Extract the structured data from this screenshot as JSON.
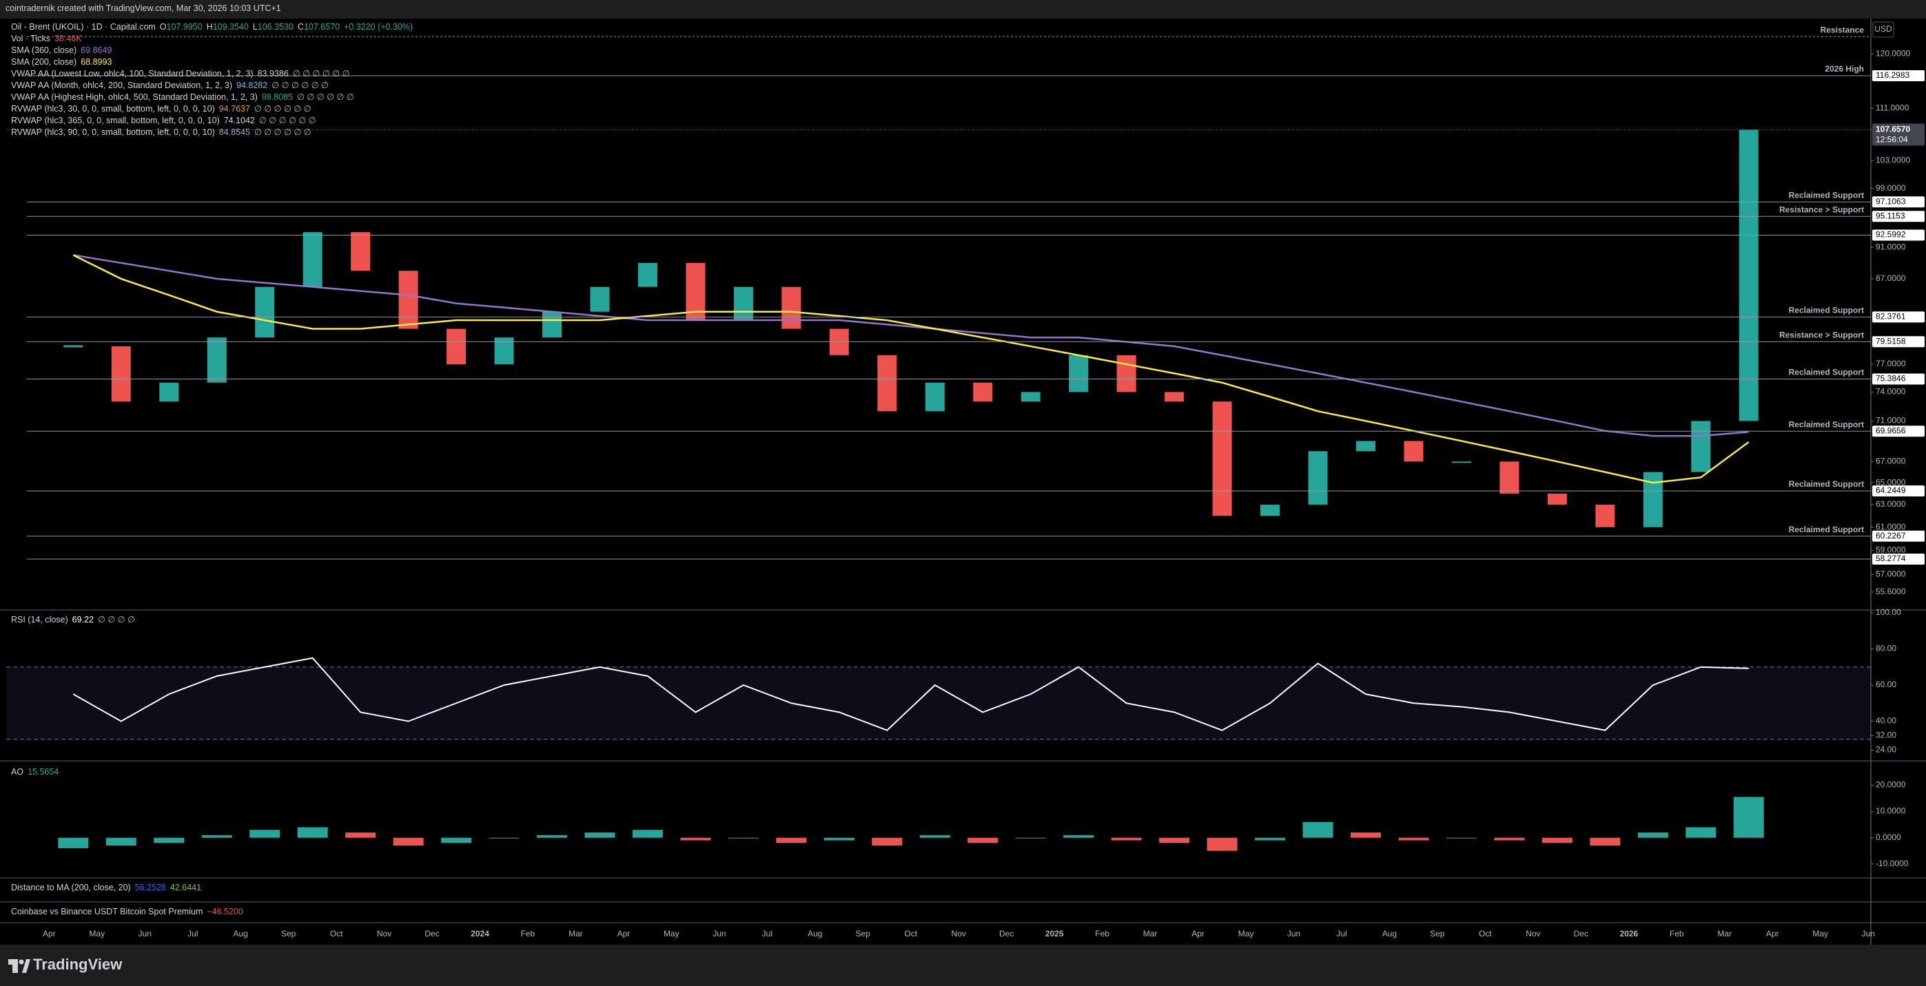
{
  "header": {
    "text": "cointradernik created with TradingView.com, Mar 30, 2026 10:03 UTC+1"
  },
  "currency": "USD",
  "legend": {
    "symbol": "Oil - Brent (UKOIL) · 1D · Capital.com",
    "ohlc": [
      {
        "key": "O",
        "value": "107.9950"
      },
      {
        "key": "H",
        "value": "109.3540"
      },
      {
        "key": "L",
        "value": "106.3530"
      },
      {
        "key": "C",
        "value": "107.6570"
      }
    ],
    "change": "+0.3220 (+0.30%)",
    "indicators": [
      {
        "name": "Vol · Ticks",
        "value": "38.46K",
        "color": "#ef5350"
      },
      {
        "name": "SMA (360, close)",
        "value": "69.8649",
        "color": "#9575cd"
      },
      {
        "name": "SMA (200, close)",
        "value": "68.8993",
        "color": "#ffeb3b"
      },
      {
        "name": "VWAP AA (Lowest Low, ohlc4, 100, Standard Deviation, 1, 2, 3)",
        "value": "83.9386",
        "extras": "∅ ∅ ∅ ∅ ∅ ∅",
        "color": "#d1d4dc"
      },
      {
        "name": "VWAP AA (Month, ohlc4, 200, Standard Deviation, 1, 2, 3)",
        "value": "94.8282",
        "extras": "∅ ∅ ∅ ∅ ∅ ∅",
        "color": "#4fc3f7"
      },
      {
        "name": "VWAP AA (Highest High, ohlc4, 500, Standard Deviation, 1, 2, 3)",
        "value": "98.8085",
        "extras": "∅ ∅ ∅ ∅ ∅ ∅",
        "color": "#26a69a"
      },
      {
        "name": "RVWAP (hlc3, 30, 0, 0, small, bottom, left, 0, 0, 0, 10)",
        "value": "94.7637",
        "extras": "∅ ∅ ∅ ∅ ∅ ∅",
        "color": "#ff9800"
      },
      {
        "name": "RVWAP (hlc3, 365, 0, 0, small, bottom, left, 0, 0, 0, 10)",
        "value": "74.1042",
        "extras": "∅ ∅ ∅ ∅ ∅ ∅",
        "color": "#d1d4dc"
      },
      {
        "name": "RVWAP (hlc3, 90, 0, 0, small, bottom, left, 0, 0, 0, 10)",
        "value": "84.8545",
        "extras": "∅ ∅ ∅ ∅ ∅ ∅",
        "color": "#9fa8da"
      }
    ]
  },
  "price_pane": {
    "log_scale": true,
    "yticks": [
      {
        "value": 120,
        "label": "120.0000"
      },
      {
        "value": 111,
        "label": "111.0000"
      },
      {
        "value": 103,
        "label": "103.0000"
      },
      {
        "value": 99,
        "label": "99.0000"
      },
      {
        "value": 91,
        "label": "91.0000"
      },
      {
        "value": 87,
        "label": "87.0000"
      },
      {
        "value": 77,
        "label": "77.0000"
      },
      {
        "value": 74,
        "label": "74.0000"
      },
      {
        "value": 71,
        "label": "71.0000"
      },
      {
        "value": 67,
        "label": "67.0000"
      },
      {
        "value": 65,
        "label": "65.0000"
      },
      {
        "value": 63,
        "label": "63.0000"
      },
      {
        "value": 61,
        "label": "61.0000"
      },
      {
        "value": 59,
        "label": "59.0000"
      },
      {
        "value": 57,
        "label": "57.0000"
      },
      {
        "value": 55.6,
        "label": "55.6000"
      }
    ],
    "levels": [
      {
        "value": 123,
        "text": "Resistance"
      },
      {
        "value": 116.2983,
        "tag": "116.2983",
        "text": "2026 High"
      },
      {
        "value": 97.1063,
        "tag": "97.1063",
        "text": "Reclaimed Support"
      },
      {
        "value": 95.1153,
        "tag": "95.1153",
        "text": "Resistance > Support"
      },
      {
        "value": 92.5992,
        "tag": "92.5992"
      },
      {
        "value": 82.3761,
        "tag": "82.3761",
        "text": "Reclaimed Support"
      },
      {
        "value": 79.5158,
        "tag": "79.5158",
        "text": "Resistance > Support"
      },
      {
        "value": 75.3846,
        "tag": "75.3846",
        "text": "Reclaimed Support"
      },
      {
        "value": 69.9656,
        "tag": "69.9656",
        "text": "Reclaimed Support"
      },
      {
        "value": 64.2449,
        "tag": "64.2449",
        "text": "Reclaimed Support"
      },
      {
        "value": 60.2267,
        "tag": "60.2267",
        "text": "Reclaimed Support"
      },
      {
        "value": 58.2774,
        "tag": "58.2774"
      }
    ],
    "last": {
      "value": 107.657,
      "label": "107.6570",
      "countdown": "12:56:04"
    },
    "close": {
      "up": "#26a69a",
      "down": "#ef5350",
      "values": [
        79,
        73,
        75,
        80,
        86,
        93,
        88,
        81,
        77,
        80,
        83,
        86,
        89,
        82,
        86,
        81,
        78,
        72,
        75,
        73,
        74,
        78,
        74,
        73,
        62,
        63,
        68,
        69,
        67,
        67,
        64,
        63,
        61,
        66,
        71,
        107.657
      ]
    },
    "sma200": {
      "color": "#ffeb3b",
      "values": [
        90,
        87,
        85,
        83,
        82,
        81,
        81,
        81.5,
        82,
        82,
        82,
        82,
        82.5,
        83,
        83,
        83,
        82.5,
        82,
        81,
        80,
        79,
        78,
        77,
        76,
        75,
        73.5,
        72,
        71,
        70,
        69,
        68,
        67,
        66,
        65,
        65.5,
        68.9
      ]
    },
    "sma360": {
      "color": "#9575cd",
      "values": [
        90,
        89,
        88,
        87,
        86.5,
        86,
        85.5,
        85,
        84,
        83.5,
        83,
        82.5,
        82,
        82,
        82,
        82,
        82,
        81.5,
        81,
        80.5,
        80,
        80,
        79.5,
        79,
        78,
        77,
        76,
        75,
        74,
        73,
        72,
        71,
        70,
        69.5,
        69.5,
        69.9
      ]
    }
  },
  "months": [
    "Apr",
    "May",
    "Jun",
    "Jul",
    "Aug",
    "Sep",
    "Oct",
    "Nov",
    "Dec",
    "2024",
    "Feb",
    "Mar",
    "Apr",
    "May",
    "Jun",
    "Jul",
    "Aug",
    "Sep",
    "Oct",
    "Nov",
    "Dec",
    "2025",
    "Feb",
    "Mar",
    "Apr",
    "May",
    "Jun",
    "Jul",
    "Aug",
    "Sep",
    "Oct",
    "Nov",
    "Dec",
    "2026",
    "Feb",
    "Mar",
    "Apr",
    "May",
    "Jun"
  ],
  "rsi_pane": {
    "title": "RSI (14, close)",
    "value": "69.22",
    "extras": "∅ ∅ ∅ ∅",
    "ylim": [
      20,
      100
    ],
    "yticks": [
      {
        "value": 100,
        "label": "100.00"
      },
      {
        "value": 80,
        "label": "80.00"
      },
      {
        "value": 60,
        "label": "60.00"
      },
      {
        "value": 40,
        "label": "40.00"
      },
      {
        "value": 32,
        "label": "32.00"
      },
      {
        "value": 24,
        "label": "24.00"
      }
    ],
    "band": [
      30,
      70
    ],
    "color": "#ffffff",
    "values": [
      55,
      40,
      55,
      65,
      70,
      75,
      45,
      40,
      50,
      60,
      65,
      70,
      65,
      45,
      60,
      50,
      45,
      35,
      60,
      45,
      55,
      70,
      50,
      45,
      35,
      50,
      72,
      55,
      50,
      48,
      45,
      40,
      35,
      60,
      70,
      69.22
    ]
  },
  "ao_pane": {
    "title": "AO",
    "value": "15.5654",
    "ylim": [
      -14,
      28
    ],
    "yticks": [
      {
        "value": 20,
        "label": "20.0000"
      },
      {
        "value": 10,
        "label": "10.0000"
      },
      {
        "value": 0,
        "label": "0.0000"
      },
      {
        "value": -10,
        "label": "-10.0000"
      }
    ],
    "up": "#26a69a",
    "down": "#ef5350",
    "values": [
      -4,
      -3,
      -2,
      1,
      3,
      4,
      2,
      -3,
      -2,
      0,
      1,
      2,
      3,
      -1,
      0,
      -2,
      -1,
      -3,
      1,
      -2,
      0,
      1,
      -1,
      -2,
      -5,
      -1,
      6,
      2,
      -1,
      0,
      -1,
      -2,
      -3,
      2,
      4,
      15.5654
    ]
  },
  "distance_pane": {
    "title": "Distance to MA (200, close, 20)",
    "values": [
      "56.2528",
      "42.6441"
    ]
  },
  "premium_pane": {
    "title": "Coinbase vs Binance USDT Bitcoin Spot Premium",
    "value": "−46.5200"
  },
  "footer": {
    "brand": "TradingView"
  }
}
